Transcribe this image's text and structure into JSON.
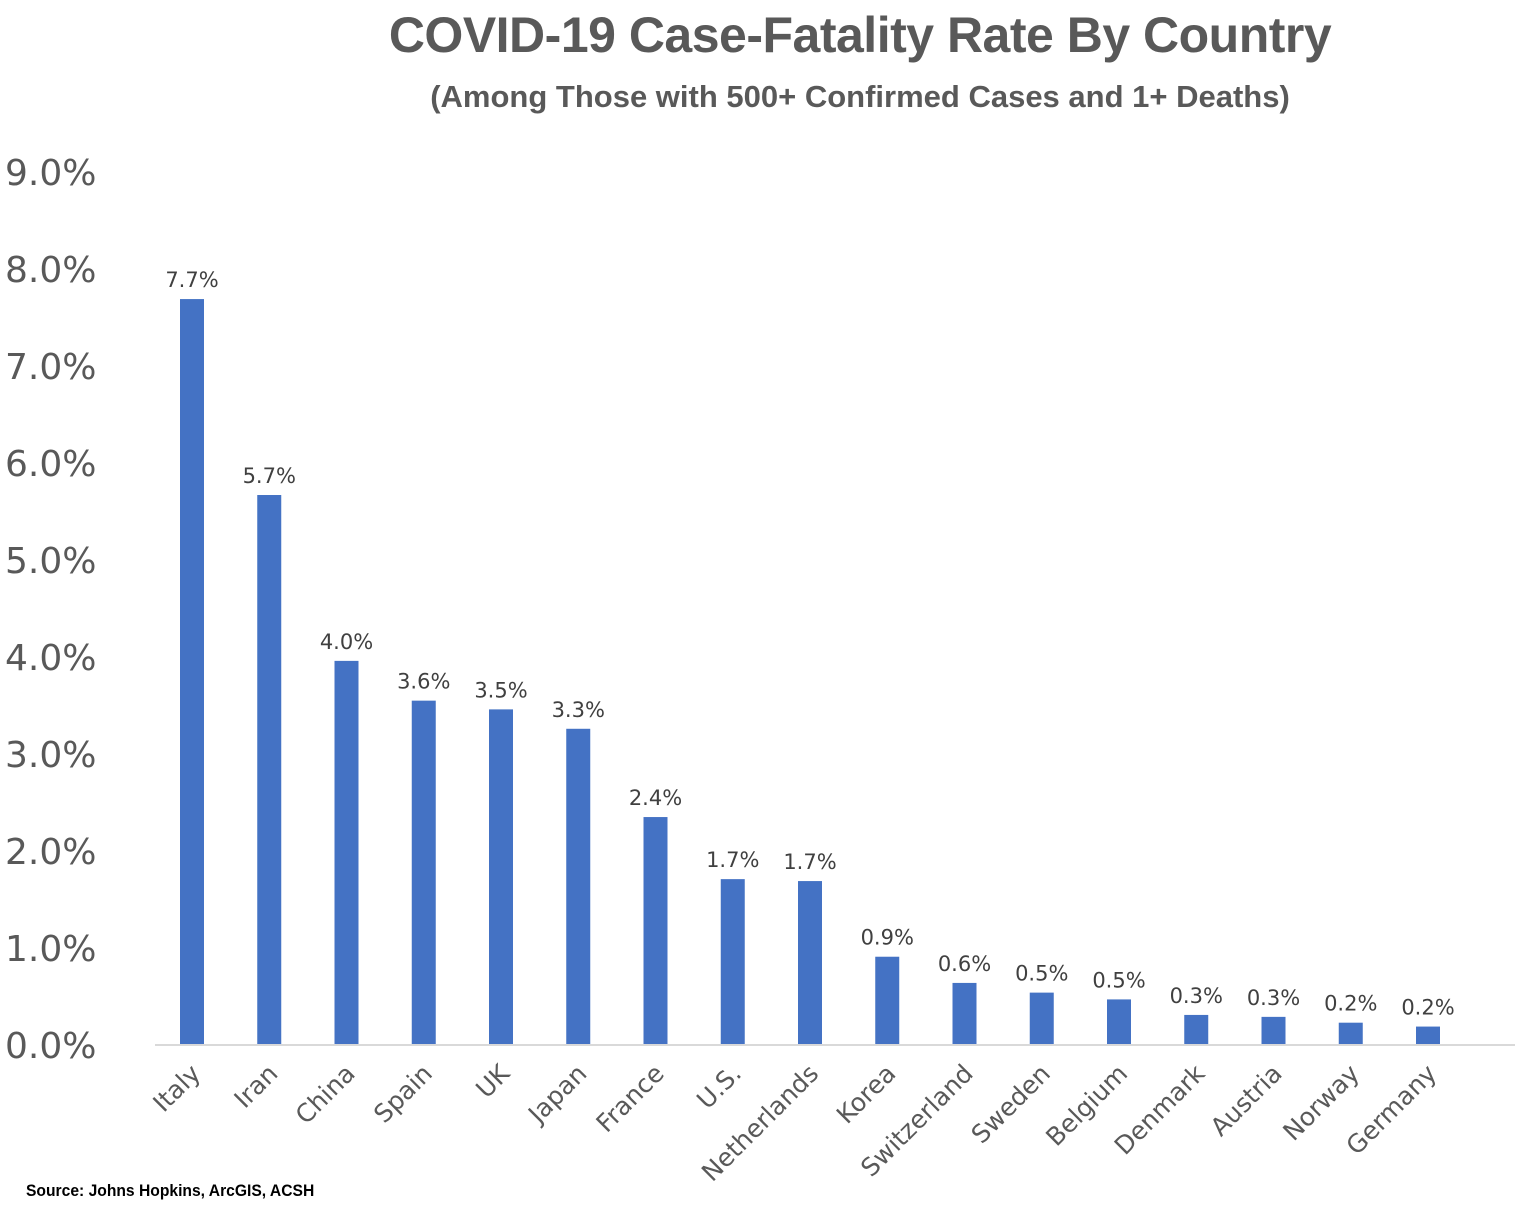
{
  "chart_data": {
    "type": "bar",
    "title": "COVID-19 Case-Fatality Rate By Country",
    "subtitle": "(Among Those with 500+ Confirmed Cases and 1+ Deaths)",
    "xlabel": "",
    "ylabel": "",
    "categories": [
      "Italy",
      "Iran",
      "China",
      "Spain",
      "UK",
      "Japan",
      "France",
      "U.S.",
      "Netherlands",
      "Korea",
      "Switzerland",
      "Sweden",
      "Belgium",
      "Denmark",
      "Austria",
      "Norway",
      "Germany"
    ],
    "values": [
      7.69,
      5.67,
      3.96,
      3.55,
      3.46,
      3.26,
      2.35,
      1.71,
      1.69,
      0.91,
      0.64,
      0.54,
      0.47,
      0.31,
      0.29,
      0.23,
      0.19
    ],
    "data_labels": [
      "7.7%",
      "5.7%",
      "4.0%",
      "3.6%",
      "3.5%",
      "3.3%",
      "2.4%",
      "1.7%",
      "1.7%",
      "0.9%",
      "0.6%",
      "0.5%",
      "0.5%",
      "0.3%",
      "0.3%",
      "0.2%",
      "0.2%"
    ],
    "ylim": [
      0,
      9
    ],
    "yticks": [
      0,
      1,
      2,
      3,
      4,
      5,
      6,
      7,
      8,
      9
    ],
    "ytick_labels": [
      "0.0%",
      "1.0%",
      "2.0%",
      "3.0%",
      "4.0%",
      "5.0%",
      "6.0%",
      "7.0%",
      "8.0%",
      "9.0%"
    ],
    "grid": false,
    "legend": "none",
    "bar_color": "#4472C4",
    "source": "Source: Johns Hopkins, ArcGIS, ACSH"
  }
}
